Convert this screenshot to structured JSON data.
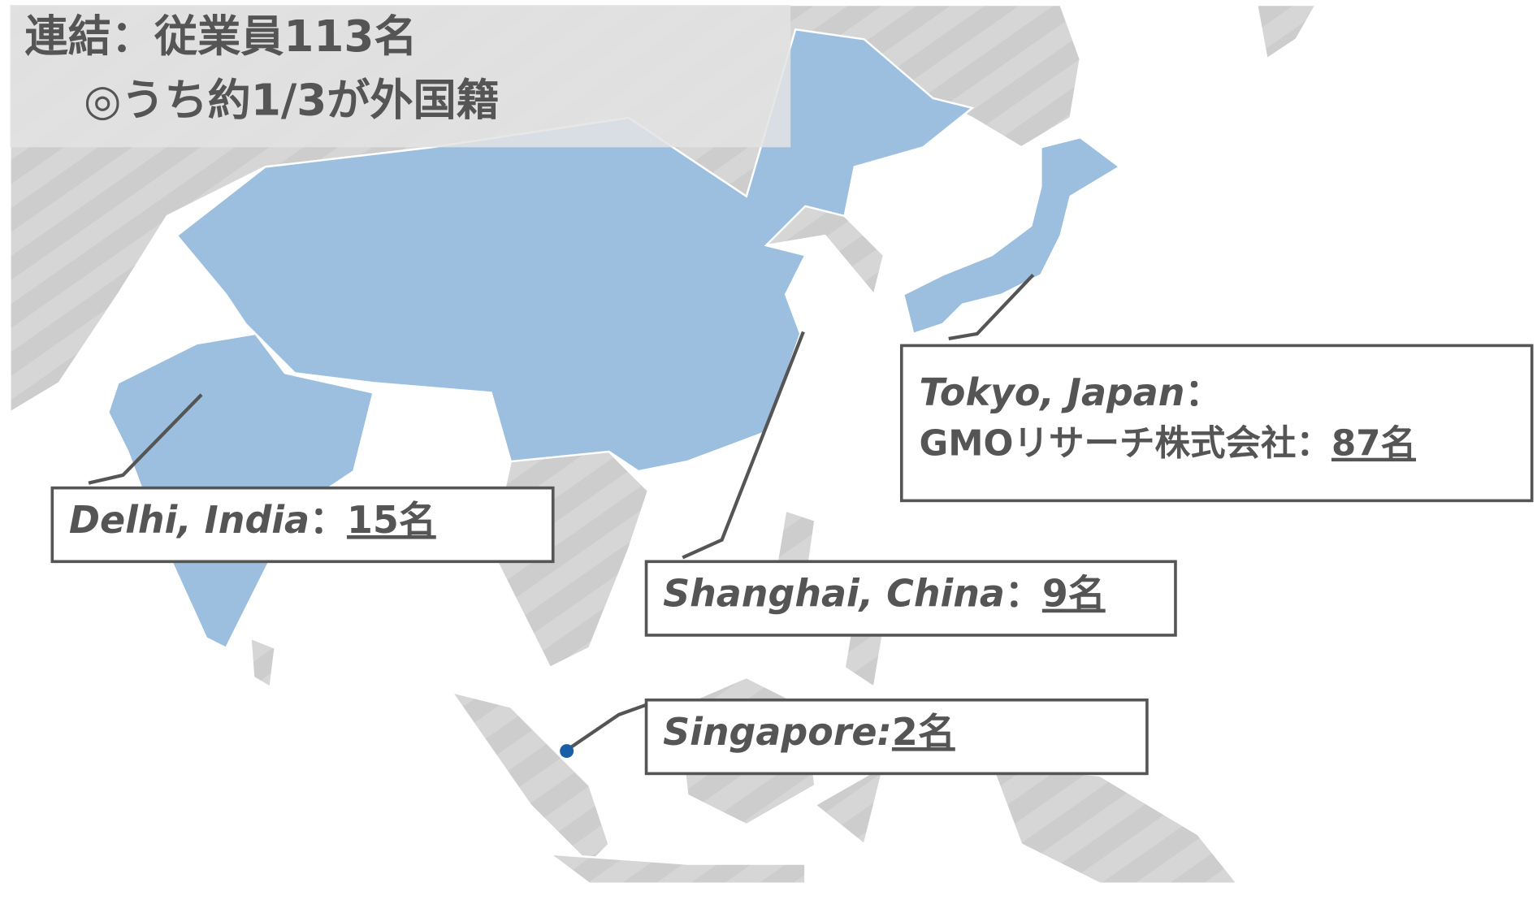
{
  "header": {
    "title": "連結：従業員113名",
    "subtitle": "◎うち約1/3が外国籍"
  },
  "labels": [
    {
      "location": "Delhi, India",
      "separator": "：",
      "count": "15名"
    },
    {
      "location": "Shanghai, China",
      "separator": "：",
      "count": "9名"
    },
    {
      "location": "Singapore:",
      "count": "2名"
    },
    {
      "location": "Tokyo, Japan",
      "separator": "：",
      "company": "GMOリサーチ株式会社：",
      "count": "87名"
    }
  ]
}
